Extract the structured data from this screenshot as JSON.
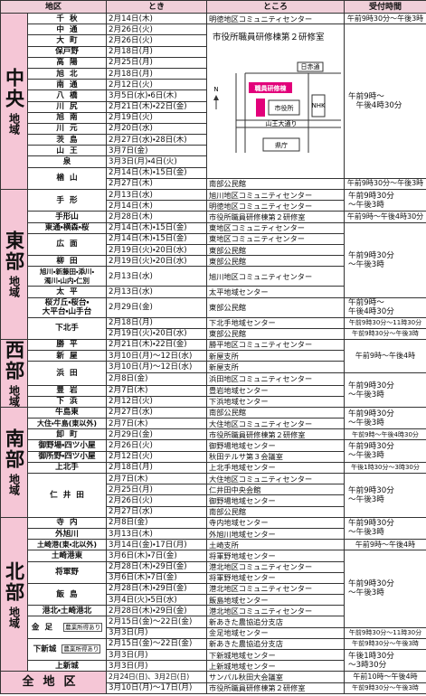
{
  "header": {
    "region": "地区",
    "date": "とき",
    "place": "ところ",
    "hours": "受付時間"
  },
  "map": {
    "road": "日赤通",
    "building": "職員研修棟",
    "hall": "市役所",
    "avenue": "山王大通り",
    "pref": "県庁",
    "nhk": "NHK",
    "north": "N"
  },
  "regions": [
    {
      "name": "中央",
      "sub": "地域",
      "rows": [
        {
          "district": "千秋",
          "date": "2月14日(木)",
          "place": "明徳地区コミュニティセンター",
          "hours": "午前9時30分～午後3時"
        },
        {
          "district": "中通",
          "date": "2月26日(火)",
          "place": "市役所職員研修棟第２研修室",
          "hours": "午前9時～\n　午後4時30分"
        },
        {
          "district": "大町",
          "date": "2月26日(火)"
        },
        {
          "district": "保戸野",
          "date": "2月18日(月)"
        },
        {
          "district": "高陽",
          "date": "2月25日(月)"
        },
        {
          "district": "旭北",
          "date": "2月18日(月)"
        },
        {
          "district": "南通",
          "date": "2月12日(火)"
        },
        {
          "district": "八橋",
          "date": "3月5日(水)・6日(木)"
        },
        {
          "district": "川尻",
          "date": "2月21日(木)・22日(金)"
        },
        {
          "district": "旭南",
          "date": "2月19日(火)"
        },
        {
          "district": "川元",
          "date": "2月20日(水)"
        },
        {
          "district": "茨島",
          "date": "2月27日(水)・28日(木)"
        },
        {
          "district": "山王",
          "date": "3月7日(金)"
        },
        {
          "district": "泉",
          "date": "3月3日(月)・4日(火)"
        },
        {
          "district": "楢山",
          "date": "2月14日(木)・15日(金)"
        },
        {
          "date": "2月27日(木)",
          "place": "南部公民館",
          "hours": "午前9時30分～午後3時"
        }
      ]
    },
    {
      "name": "東部",
      "sub": "地域",
      "rows": [
        {
          "district": "手形",
          "date": "2月13日(水)",
          "place": "旭川地区コミュニティセンター",
          "hours": "午前9時30分\n～午後3時"
        },
        {
          "date": "2月14日(木)",
          "place": "明徳地区コミュニティセンター"
        },
        {
          "district": "手形山",
          "date": "2月28日(木)",
          "place": "市役所職員研修棟第２研修室",
          "hours": "午前9時～午後4時30分"
        },
        {
          "district": "東通・横森・桜",
          "date": "2月14日(木)・15日(金)",
          "place": "東地区コミュニティセンター",
          "hours": "午前9時30分\n～午後3時"
        },
        {
          "district": "広面",
          "date": "2月14日(木)・15日(金)",
          "place": "東地区コミュニティセンター"
        },
        {
          "date": "2月19日(火)・20日(水)",
          "place": "東部公民館"
        },
        {
          "district": "柳田",
          "date": "2月19日(火)・20日(水)",
          "place": "東部公民館"
        },
        {
          "district": "旭川・新藤田・添川・\n濁川・山内・仁別",
          "date": "2月13日(水)",
          "place": "旭川地区コミュニティセンター"
        },
        {
          "district": "太平",
          "date": "2月13日(水)",
          "place": "太平地域センター"
        },
        {
          "district": "桜ガ丘・桜台・\n大平台・山手台",
          "date": "2月29日(金)",
          "place": "東部公民館",
          "hours": "午前9時～\n午後4時30分"
        },
        {
          "district": "下北手",
          "date": "2月18日(月)",
          "place": "下北手地域センター",
          "hours": "午前9時30分～11時30分"
        },
        {
          "date": "2月19日(火)・20日(水)",
          "place": "東部公民館",
          "hours": "午前9時30分～午後3時"
        }
      ]
    },
    {
      "name": "西部",
      "sub": "地域",
      "rows": [
        {
          "district": "勝平",
          "date": "2月21日(木)・22日(金)",
          "place": "勝平地区コミュニティセンター",
          "hours": "午前9時～午後4時"
        },
        {
          "district": "新屋",
          "date": "3月10日(月)～12日(水)",
          "place": "新屋支所"
        },
        {
          "district": "浜田",
          "date": "3月10日(月)～12日(水)",
          "place": "新屋支所"
        },
        {
          "date": "2月8日(金)",
          "place": "浜田地区コミュニティセンター",
          "hours": "午前9時30分\n～午後3時"
        },
        {
          "district": "豊岩",
          "date": "2月7日(木)",
          "place": "豊岩地域センター"
        },
        {
          "district": "下浜",
          "date": "2月12日(火)",
          "place": "下浜地域センター"
        }
      ]
    },
    {
      "name": "南部",
      "sub": "地域",
      "rows": [
        {
          "district": "牛島東",
          "date": "2月27日(水)",
          "place": "南部公民館",
          "hours": "午前9時30分\n～午後3時"
        },
        {
          "district": "大住・牛島(東以外)",
          "date": "2月7日(木)",
          "place": "大住地区コミュニティセンター"
        },
        {
          "district": "卸町",
          "date": "2月29日(金)",
          "place": "市役所職員研修棟第２研修室",
          "hours": "午前9時～午後4時30分"
        },
        {
          "district": "御野場・四ツ小屋",
          "date": "2月26日(火)",
          "place": "御野場地域センター",
          "hours": "午前9時30分\n～午後3時"
        },
        {
          "district": "御所野・四ツ小屋",
          "date": "2月12日(火)",
          "place": "秋田テルサ第３会議室"
        },
        {
          "district": "上北手",
          "date": "2月18日(月)",
          "place": "上北手地域センター",
          "hours": "午後1時30分～3時30分"
        },
        {
          "district": "仁井田",
          "date": "2月7日(木)",
          "place": "大住地区コミュニティセンター",
          "hours": "午前9時30分\n～午後3時"
        },
        {
          "date": "2月25日(月)",
          "place": "仁井田中央会館"
        },
        {
          "date": "2月26日(火)",
          "place": "御野場地域センター"
        },
        {
          "date": "2月27日(水)",
          "place": "南部公民館"
        }
      ]
    },
    {
      "name": "北部",
      "sub": "地域",
      "rows": [
        {
          "district": "寺内",
          "date": "2月8日(金)",
          "place": "寺内地域センター",
          "hours": "午前9時30分\n～午後3時"
        },
        {
          "district": "外旭川",
          "date": "3月13日(木)",
          "place": "外旭川地域センター"
        },
        {
          "district": "土崎港(東・北以外)",
          "date": "3月14日(金)・17日(月)",
          "place": "土崎支所",
          "hours": "午前9時～午後4時"
        },
        {
          "district": "土崎港東",
          "date": "3月6日(木)・7日(金)",
          "place": "将軍野地域センター",
          "hours": "午前9時30分\n～午後3時"
        },
        {
          "district": "将軍野",
          "date": "2月28日(木)・29日(金)",
          "place": "港北地区コミュニティセンター"
        },
        {
          "date": "3月6日(木)・7日(金)",
          "place": "将軍野地域センター"
        },
        {
          "district": "飯島",
          "date": "2月28日(木)・29日(金)",
          "place": "港北地区コミュニティセンター"
        },
        {
          "date": "3月4日(火)・5日(水)",
          "place": "飯島地域センター"
        },
        {
          "district": "港北・土崎港北",
          "date": "2月28日(木)・29日(金)",
          "place": "港北地区コミュニティセンター"
        },
        {
          "district": "金足",
          "note": "農業所得あり",
          "date": "2月15日(金)～22日(金)",
          "place": "新あきた農協追分支店"
        },
        {
          "date": "3月3日(月)",
          "place": "金足地域センター",
          "hours": "午前9時30分～11時30分"
        },
        {
          "district": "下新城",
          "note": "農業所得あり",
          "date": "2月15日(金)～22日(金)",
          "place": "新あきた農協追分支店",
          "hours": "午前9時30分～午後3時"
        },
        {
          "date": "3月3日(月)",
          "place": "下新城地域センター",
          "hours": "午後1時30分\n～3時30分"
        },
        {
          "district": "上新城",
          "date": "3月3日(月)",
          "place": "上新城地域センター"
        }
      ]
    }
  ],
  "all": {
    "name": "全地区",
    "rows": [
      {
        "date": "2月24日(日)、3月2日(日)",
        "place": "サンパル秋田大会議室",
        "hours": "午前10時～午後4時"
      },
      {
        "date": "3月10日(月)～17日(月)",
        "place": "市役所職員研修棟第２研修室",
        "hours": "午前9時30分～午後3時"
      }
    ]
  }
}
